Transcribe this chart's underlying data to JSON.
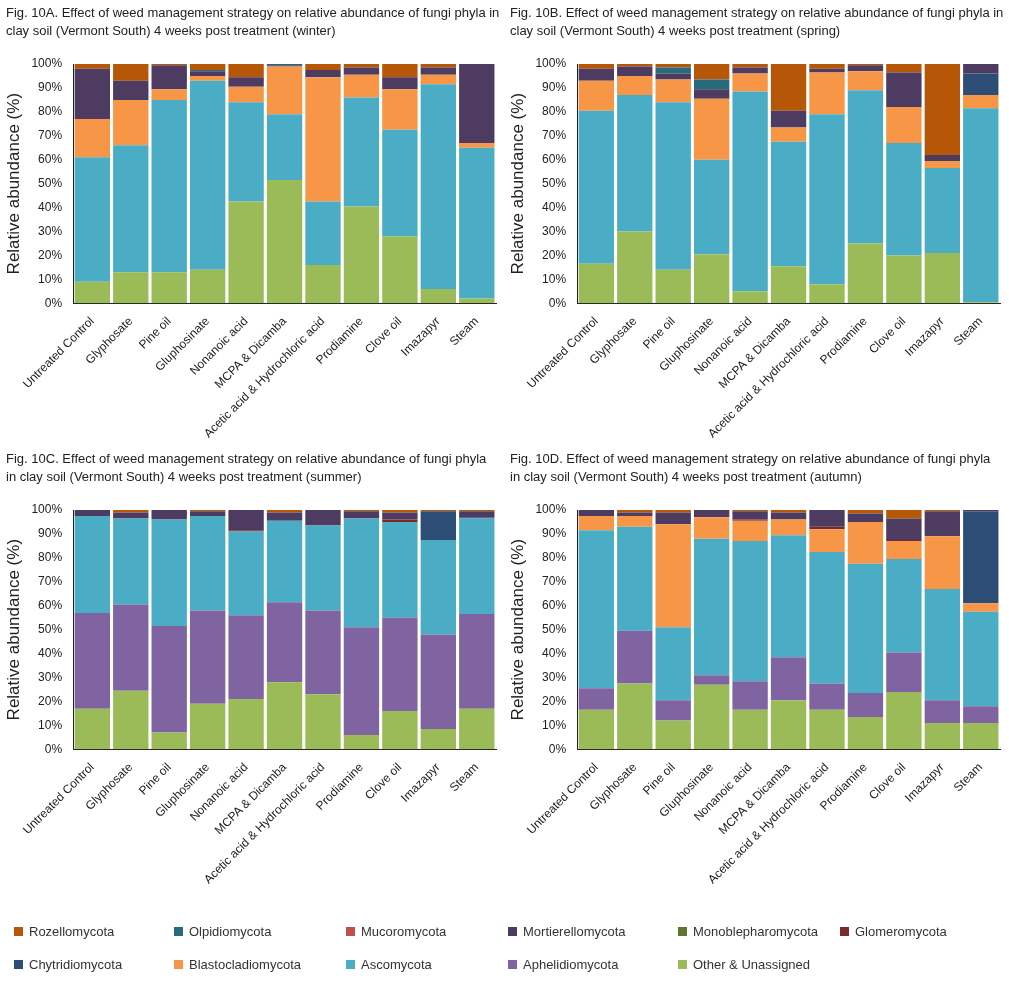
{
  "chart_data": [
    {
      "type": "bar",
      "stacked": true,
      "legend": "bottom",
      "title": "Fig. 10A. Effect of weed management strategy on relative abundance of fungi phyla in clay soil (Vermont South) 4 weeks post treatment (winter)",
      "ylabel": "Relative abundance (%)",
      "categories": [
        "Untreated Control",
        "Glyphosate",
        "Pine oil",
        "Gluphosinate",
        "Nonanoic acid",
        "MCPA & Dicamba",
        "Acetic acid & Hydrochloric acid",
        "Prodiamine",
        "Clove oil",
        "Imazapyr",
        "Steam"
      ],
      "ylim": [
        0,
        100
      ],
      "yticks": [
        {
          "value": 0,
          "label": "0%"
        },
        {
          "value": 10,
          "label": "10%"
        },
        {
          "value": 20,
          "label": "20%"
        },
        {
          "value": 30,
          "label": "30%"
        },
        {
          "value": 40,
          "label": "40%"
        },
        {
          "value": 50,
          "label": "50%"
        },
        {
          "value": 60,
          "label": "60%"
        },
        {
          "value": 70,
          "label": "70%"
        },
        {
          "value": 80,
          "label": "80%"
        },
        {
          "value": 90,
          "label": "90%"
        },
        {
          "value": 100,
          "label": "100%"
        }
      ],
      "series": [
        {
          "name": "Other & Unassigned",
          "color": "#9bbb59",
          "values": [
            9,
            13,
            13,
            14,
            42.5,
            51.5,
            16,
            40.5,
            28,
            6,
            2
          ]
        },
        {
          "name": "Aphelidiomycota",
          "color": "#8064a2",
          "values": [
            null,
            null,
            null,
            null,
            null,
            null,
            null,
            null,
            null,
            null,
            null
          ]
        },
        {
          "name": "Ascomycota",
          "color": "#4bacc6",
          "values": [
            52,
            53,
            72,
            79,
            41.5,
            27.5,
            26.5,
            45.5,
            44.5,
            85.5,
            63
          ]
        },
        {
          "name": "Blastocladiomycota",
          "color": "#f79646",
          "values": [
            16,
            19,
            4.5,
            2,
            6.5,
            20,
            52,
            9.5,
            17,
            4,
            2
          ]
        },
        {
          "name": "Chytridiomycota",
          "color": "#2c4d75",
          "values": [
            null,
            null,
            null,
            null,
            null,
            null,
            null,
            null,
            null,
            null,
            null
          ]
        },
        {
          "name": "Glomeromycota",
          "color": "#772c2a",
          "values": [
            null,
            null,
            null,
            null,
            null,
            null,
            null,
            null,
            null,
            null,
            null
          ]
        },
        {
          "name": "Monoblepharomycota",
          "color": "#5f7530",
          "values": [
            null,
            null,
            null,
            null,
            null,
            null,
            null,
            null,
            null,
            null,
            null
          ]
        },
        {
          "name": "Mortierellomycota",
          "color": "#4d3b62",
          "values": [
            21,
            8,
            10,
            2,
            4,
            0.5,
            3,
            3,
            5,
            3,
            33
          ]
        },
        {
          "name": "Mucoromycota",
          "color": "#c0504d",
          "values": [
            null,
            null,
            null,
            null,
            null,
            null,
            null,
            null,
            null,
            null,
            null
          ]
        },
        {
          "name": "Olpidiomycota",
          "color": "#276a7c",
          "values": [
            null,
            null,
            null,
            0.5,
            null,
            0.5,
            null,
            null,
            null,
            null,
            null
          ]
        },
        {
          "name": "Rozellomycota",
          "color": "#b65708",
          "values": [
            2,
            7,
            0.5,
            2.5,
            5.5,
            null,
            2.5,
            1.5,
            5.5,
            1.5,
            null
          ]
        }
      ]
    },
    {
      "type": "bar",
      "stacked": true,
      "title": "Fig. 10B. Effect of weed management strategy on relative abundance of fungi phyla in clay soil (Vermont South) 4 weeks post treatment (spring)",
      "ylabel": "Relative abundance (%)",
      "categories": [
        "Untreated Control",
        "Glyphosate",
        "Pine oil",
        "Gluphosinate",
        "Nonanoic acid",
        "MCPA & Dicamba",
        "Acetic acid & Hydrochloric acid",
        "Prodiamine",
        "Clove oil",
        "Imazapyr",
        "Steam"
      ],
      "ylim": [
        0,
        100
      ],
      "yticks": [
        {
          "value": 0,
          "label": "0%"
        },
        {
          "value": 10,
          "label": "10%"
        },
        {
          "value": 20,
          "label": "20%"
        },
        {
          "value": 30,
          "label": "30%"
        },
        {
          "value": 40,
          "label": "40%"
        },
        {
          "value": 50,
          "label": "50%"
        },
        {
          "value": 60,
          "label": "60%"
        },
        {
          "value": 70,
          "label": "70%"
        },
        {
          "value": 80,
          "label": "80%"
        },
        {
          "value": 90,
          "label": "90%"
        },
        {
          "value": 100,
          "label": "100%"
        }
      ],
      "series": [
        {
          "color": "#9bbb59",
          "values": [
            16.5,
            30,
            14,
            20.5,
            5,
            15.5,
            8,
            25,
            20,
            21,
            0.5
          ]
        },
        {
          "color": "#4bacc6",
          "values": [
            64,
            57,
            70,
            39.5,
            83.5,
            52,
            71,
            64,
            47,
            35.5,
            81
          ]
        },
        {
          "color": "#f79646",
          "values": [
            12.5,
            8,
            9.5,
            25.5,
            7.5,
            6,
            17.5,
            8,
            15,
            3,
            5.5
          ]
        },
        {
          "color": "#2c4d75",
          "values": [
            null,
            null,
            null,
            null,
            null,
            null,
            null,
            null,
            null,
            null,
            9
          ]
        },
        {
          "color": "#4d3b62",
          "values": [
            5,
            4,
            2.5,
            4,
            2.5,
            7,
            1.5,
            2.5,
            14.5,
            2.5,
            4
          ]
        },
        {
          "color": "#276a7c",
          "values": [
            null,
            null,
            2.5,
            4,
            null,
            null,
            null,
            null,
            null,
            null,
            null
          ]
        },
        {
          "color": "#b65708",
          "values": [
            2,
            1,
            1.5,
            6.5,
            1.5,
            19.5,
            2,
            0.5,
            3.5,
            38,
            null
          ]
        }
      ]
    },
    {
      "type": "bar",
      "stacked": true,
      "title": "Fig. 10C. Effect of weed management strategy on relative abundance of fungi phyla in clay soil (Vermont South) 4 weeks post treatment (summer)",
      "ylabel": "Relative abundance (%)",
      "categories": [
        "Untreated Control",
        "Glyphosate",
        "Pine oil",
        "Gluphosinate",
        "Nonanoic acid",
        "MCPA & Dicamba",
        "Acetic acid & Hydrochloric acid",
        "Prodiamine",
        "Clove oil",
        "Imazapyr",
        "Steam"
      ],
      "ylim": [
        0,
        100
      ],
      "yticks": [
        {
          "value": 0,
          "label": "0%"
        },
        {
          "value": 10,
          "label": "10%"
        },
        {
          "value": 20,
          "label": "20%"
        },
        {
          "value": 30,
          "label": "30%"
        },
        {
          "value": 40,
          "label": "40%"
        },
        {
          "value": 50,
          "label": "50%"
        },
        {
          "value": 60,
          "label": "60%"
        },
        {
          "value": 70,
          "label": "70%"
        },
        {
          "value": 80,
          "label": "80%"
        },
        {
          "value": 90,
          "label": "90%"
        },
        {
          "value": 100,
          "label": "100%"
        }
      ],
      "series": [
        {
          "color": "#9bbb59",
          "values": [
            17,
            24.5,
            7,
            19,
            21,
            28,
            23,
            6,
            16,
            8.5,
            17
          ]
        },
        {
          "color": "#8064a2",
          "values": [
            40,
            36,
            44.5,
            39,
            35,
            33.5,
            35,
            45,
            39,
            39.5,
            39.5
          ]
        },
        {
          "color": "#4bacc6",
          "values": [
            40.5,
            36,
            44.5,
            39.5,
            35,
            34,
            35.5,
            45.5,
            40,
            39.5,
            40
          ]
        },
        {
          "color": "#2c4d75",
          "values": [
            null,
            null,
            null,
            null,
            null,
            null,
            null,
            null,
            null,
            12,
            0.5
          ]
        },
        {
          "color": "#772c2a",
          "values": [
            null,
            null,
            null,
            null,
            0.5,
            null,
            null,
            null,
            1,
            null,
            null
          ]
        },
        {
          "color": "#4d3b62",
          "values": [
            2.5,
            2.5,
            4,
            2,
            8.5,
            3.5,
            6.5,
            3,
            3,
            null,
            2.5
          ]
        },
        {
          "color": "#b65708",
          "values": [
            null,
            1,
            null,
            0.5,
            null,
            1,
            null,
            0.5,
            1,
            0.5,
            0.5
          ]
        }
      ]
    },
    {
      "type": "bar",
      "stacked": true,
      "title": "Fig. 10D. Effect of weed management strategy on relative abundance of fungi phyla in clay soil (Vermont South) 4 weeks post treatment (autumn)",
      "ylabel": "Relative abundance (%)",
      "categories": [
        "Untreated Control",
        "Glyphosate",
        "Pine oil",
        "Gluphosinate",
        "Nonanoic acid",
        "MCPA & Dicamba",
        "Acetic acid & Hydrochloric acid",
        "Prodiamine",
        "Clove oil",
        "Imazapyr",
        "Steam"
      ],
      "ylim": [
        0,
        100
      ],
      "yticks": [
        {
          "value": 0,
          "label": "0%"
        },
        {
          "value": 10,
          "label": "10%"
        },
        {
          "value": 20,
          "label": "20%"
        },
        {
          "value": 30,
          "label": "30%"
        },
        {
          "value": 40,
          "label": "40%"
        },
        {
          "value": 50,
          "label": "50%"
        },
        {
          "value": 60,
          "label": "60%"
        },
        {
          "value": 70,
          "label": "70%"
        },
        {
          "value": 80,
          "label": "80%"
        },
        {
          "value": 90,
          "label": "90%"
        },
        {
          "value": 100,
          "label": "100%"
        }
      ],
      "series": [
        {
          "color": "#9bbb59",
          "values": [
            16.5,
            27.5,
            12,
            27,
            16.5,
            20.5,
            16.5,
            13.5,
            24,
            11,
            11
          ]
        },
        {
          "color": "#8064a2",
          "values": [
            9,
            22,
            8.5,
            4,
            12,
            18,
            11,
            10,
            16.5,
            9.5,
            7
          ]
        },
        {
          "color": "#4bacc6",
          "values": [
            66,
            43.5,
            30.5,
            57,
            58.5,
            51,
            55,
            54,
            39,
            46.5,
            39.5
          ]
        },
        {
          "color": "#f79646",
          "values": [
            6,
            4.5,
            43,
            9,
            8.5,
            6.5,
            9.5,
            17.5,
            7.5,
            22,
            3.5
          ]
        },
        {
          "color": "#2c4d75",
          "values": [
            null,
            null,
            null,
            null,
            null,
            null,
            null,
            null,
            null,
            null,
            38.5
          ]
        },
        {
          "color": "#772c2a",
          "values": [
            null,
            null,
            null,
            null,
            0.5,
            null,
            1,
            null,
            0.5,
            null,
            null
          ]
        },
        {
          "color": "#4d3b62",
          "values": [
            2.5,
            1.5,
            5,
            3,
            3.5,
            3,
            7,
            3.5,
            9,
            10.5,
            0.5
          ]
        },
        {
          "color": "#b65708",
          "values": [
            null,
            1,
            1,
            null,
            0.5,
            1,
            null,
            1.5,
            3.5,
            0.5,
            null
          ]
        }
      ]
    }
  ]
}
